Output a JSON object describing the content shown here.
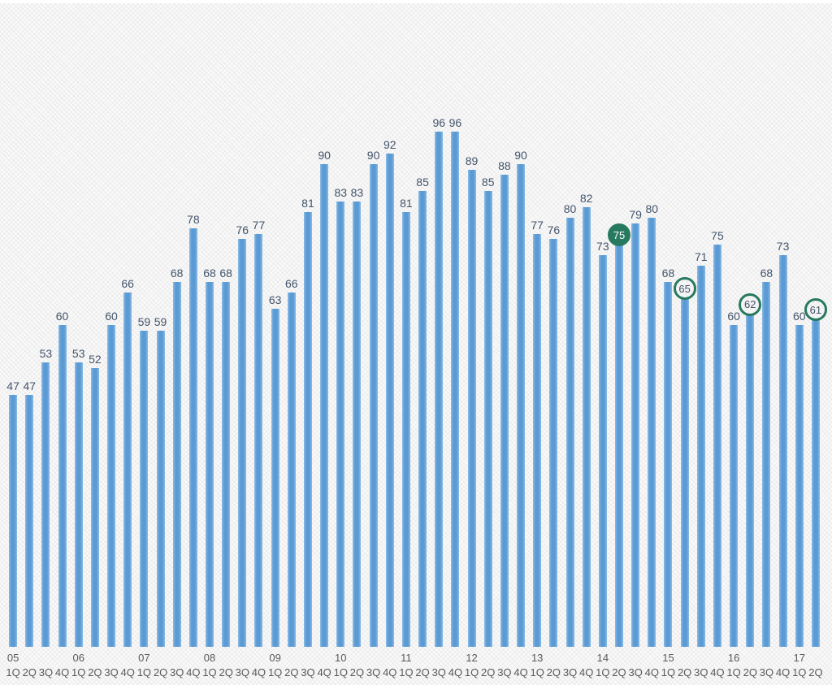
{
  "chart_data": {
    "type": "bar",
    "title": "",
    "xlabel": "",
    "ylabel": "",
    "ylim": [
      0,
      120
    ],
    "grid": false,
    "legend": null,
    "categories": [
      "05-1Q",
      "05-2Q",
      "05-3Q",
      "05-4Q",
      "06-1Q",
      "06-2Q",
      "06-3Q",
      "06-4Q",
      "07-1Q",
      "07-2Q",
      "07-3Q",
      "07-4Q",
      "08-1Q",
      "08-2Q",
      "08-3Q",
      "08-4Q",
      "09-1Q",
      "09-2Q",
      "09-3Q",
      "09-4Q",
      "10-1Q",
      "10-2Q",
      "10-3Q",
      "10-4Q",
      "11-1Q",
      "11-2Q",
      "11-3Q",
      "11-4Q",
      "12-1Q",
      "12-2Q",
      "12-3Q",
      "12-4Q",
      "13-1Q",
      "13-2Q",
      "13-3Q",
      "13-4Q",
      "14-1Q",
      "14-2Q",
      "14-3Q",
      "14-4Q",
      "15-1Q",
      "15-2Q",
      "15-3Q",
      "15-4Q",
      "16-1Q",
      "16-2Q",
      "16-3Q",
      "16-4Q",
      "17-1Q",
      "17-2Q"
    ],
    "values": [
      47,
      47,
      53,
      60,
      53,
      52,
      60,
      66,
      59,
      59,
      68,
      78,
      68,
      68,
      76,
      77,
      63,
      66,
      81,
      90,
      83,
      83,
      90,
      92,
      81,
      85,
      96,
      96,
      89,
      85,
      88,
      90,
      77,
      76,
      80,
      82,
      73,
      75,
      79,
      80,
      68,
      65,
      71,
      75,
      60,
      62,
      68,
      73,
      60,
      61
    ],
    "points": [
      {
        "year": "05",
        "quarter": "1Q",
        "value": 47,
        "circled": false
      },
      {
        "year": "05",
        "quarter": "2Q",
        "value": 47,
        "circled": false
      },
      {
        "year": "05",
        "quarter": "3Q",
        "value": 53,
        "circled": false
      },
      {
        "year": "05",
        "quarter": "4Q",
        "value": 60,
        "circled": false
      },
      {
        "year": "06",
        "quarter": "1Q",
        "value": 53,
        "circled": false
      },
      {
        "year": "06",
        "quarter": "2Q",
        "value": 52,
        "circled": false
      },
      {
        "year": "06",
        "quarter": "3Q",
        "value": 60,
        "circled": false
      },
      {
        "year": "06",
        "quarter": "4Q",
        "value": 66,
        "circled": false
      },
      {
        "year": "07",
        "quarter": "1Q",
        "value": 59,
        "circled": false
      },
      {
        "year": "07",
        "quarter": "2Q",
        "value": 59,
        "circled": false
      },
      {
        "year": "07",
        "quarter": "3Q",
        "value": 68,
        "circled": false
      },
      {
        "year": "07",
        "quarter": "4Q",
        "value": 78,
        "circled": false
      },
      {
        "year": "08",
        "quarter": "1Q",
        "value": 68,
        "circled": false
      },
      {
        "year": "08",
        "quarter": "2Q",
        "value": 68,
        "circled": false
      },
      {
        "year": "08",
        "quarter": "3Q",
        "value": 76,
        "circled": false
      },
      {
        "year": "08",
        "quarter": "4Q",
        "value": 77,
        "circled": false
      },
      {
        "year": "09",
        "quarter": "1Q",
        "value": 63,
        "circled": false
      },
      {
        "year": "09",
        "quarter": "2Q",
        "value": 66,
        "circled": false
      },
      {
        "year": "09",
        "quarter": "3Q",
        "value": 81,
        "circled": false
      },
      {
        "year": "09",
        "quarter": "4Q",
        "value": 90,
        "circled": false
      },
      {
        "year": "10",
        "quarter": "1Q",
        "value": 83,
        "circled": false
      },
      {
        "year": "10",
        "quarter": "2Q",
        "value": 83,
        "circled": false
      },
      {
        "year": "10",
        "quarter": "3Q",
        "value": 90,
        "circled": false
      },
      {
        "year": "10",
        "quarter": "4Q",
        "value": 92,
        "circled": false
      },
      {
        "year": "11",
        "quarter": "1Q",
        "value": 81,
        "circled": false
      },
      {
        "year": "11",
        "quarter": "2Q",
        "value": 85,
        "circled": false
      },
      {
        "year": "11",
        "quarter": "3Q",
        "value": 96,
        "circled": false
      },
      {
        "year": "11",
        "quarter": "4Q",
        "value": 96,
        "circled": false
      },
      {
        "year": "12",
        "quarter": "1Q",
        "value": 89,
        "circled": false
      },
      {
        "year": "12",
        "quarter": "2Q",
        "value": 85,
        "circled": false
      },
      {
        "year": "12",
        "quarter": "3Q",
        "value": 88,
        "circled": false
      },
      {
        "year": "12",
        "quarter": "4Q",
        "value": 90,
        "circled": false
      },
      {
        "year": "13",
        "quarter": "1Q",
        "value": 77,
        "circled": false
      },
      {
        "year": "13",
        "quarter": "2Q",
        "value": 76,
        "circled": false
      },
      {
        "year": "13",
        "quarter": "3Q",
        "value": 80,
        "circled": false
      },
      {
        "year": "13",
        "quarter": "4Q",
        "value": 82,
        "circled": false
      },
      {
        "year": "14",
        "quarter": "1Q",
        "value": 73,
        "circled": false
      },
      {
        "year": "14",
        "quarter": "2Q",
        "value": 75,
        "circled": true,
        "circle_filled": true
      },
      {
        "year": "14",
        "quarter": "3Q",
        "value": 79,
        "circled": false
      },
      {
        "year": "14",
        "quarter": "4Q",
        "value": 80,
        "circled": false
      },
      {
        "year": "15",
        "quarter": "1Q",
        "value": 68,
        "circled": false
      },
      {
        "year": "15",
        "quarter": "2Q",
        "value": 65,
        "circled": true,
        "circle_filled": false
      },
      {
        "year": "15",
        "quarter": "3Q",
        "value": 71,
        "circled": false
      },
      {
        "year": "15",
        "quarter": "4Q",
        "value": 75,
        "circled": false
      },
      {
        "year": "16",
        "quarter": "1Q",
        "value": 60,
        "circled": false
      },
      {
        "year": "16",
        "quarter": "2Q",
        "value": 62,
        "circled": true,
        "circle_filled": false
      },
      {
        "year": "16",
        "quarter": "3Q",
        "value": 68,
        "circled": false
      },
      {
        "year": "16",
        "quarter": "4Q",
        "value": 73,
        "circled": false
      },
      {
        "year": "17",
        "quarter": "1Q",
        "value": 60,
        "circled": false
      },
      {
        "year": "17",
        "quarter": "2Q",
        "value": 61,
        "circled": true,
        "circle_filled": false
      }
    ],
    "year_labels": [
      "05",
      "06",
      "07",
      "08",
      "09",
      "10",
      "11",
      "12",
      "13",
      "14",
      "15",
      "16",
      "17"
    ]
  },
  "style": {
    "bar_color": "#5b9bd5",
    "bar_edge_color": "#8fbbe2",
    "value_label_color": "#44546a",
    "axis_label_color": "#595959",
    "circle_color": "#27795f",
    "circle_filled_text_color": "#ffffff",
    "background_color": "#f9f9f9"
  }
}
